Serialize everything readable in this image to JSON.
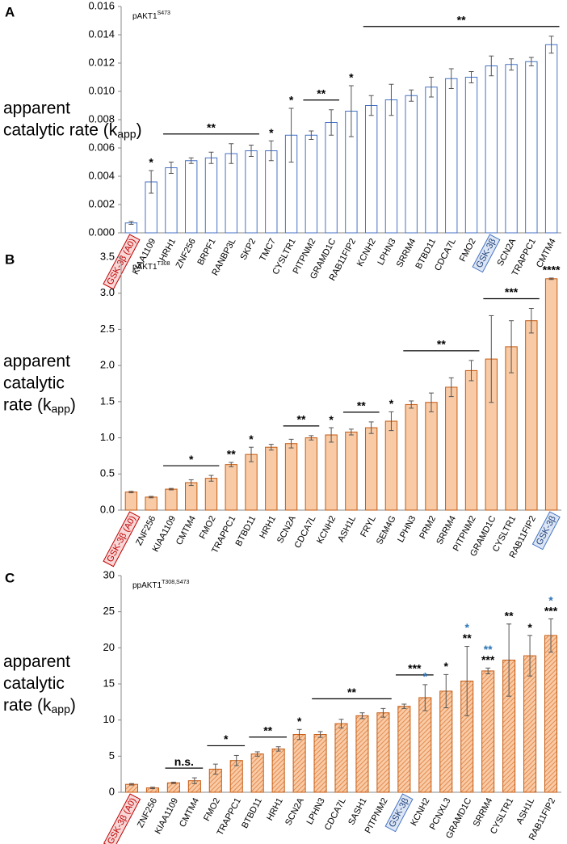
{
  "chart_data": [
    {
      "type": "bar",
      "panel": "A",
      "title": "pAKT1",
      "title_sup": "S473",
      "ylabel_lines": [
        "apparent",
        "catalytic rate (k"
      ],
      "ylabel_sub": "app",
      "ylabel_end": ")",
      "categories": [
        "GSK-3β (A0)",
        "KIAA1109",
        "HRH1",
        "ZNF256",
        "BRPF1",
        "RANBP3L",
        "SKP2",
        "TMC7",
        "CYSLTR1",
        "PITPNM2",
        "GRAMD1C",
        "RAB11FIP2",
        "KCNH2",
        "LPHN3",
        "SRRM4",
        "BTBD11",
        "CDCA7L",
        "FMO2",
        "GSK-3β",
        "SCN2A",
        "TRAPPC1",
        "CMTM4"
      ],
      "values": [
        0.0007,
        0.0036,
        0.0046,
        0.0051,
        0.0053,
        0.0056,
        0.0058,
        0.0058,
        0.0069,
        0.0069,
        0.0078,
        0.0086,
        0.009,
        0.0094,
        0.0097,
        0.0103,
        0.0109,
        0.011,
        0.0118,
        0.0119,
        0.0121,
        0.0133
      ],
      "errors": [
        0.0001,
        0.0008,
        0.0004,
        0.0002,
        0.0004,
        0.0007,
        0.0004,
        0.0007,
        0.0019,
        0.0003,
        0.0009,
        0.0018,
        0.0007,
        0.0011,
        0.0004,
        0.0007,
        0.0007,
        0.0004,
        0.0007,
        0.0004,
        0.0003,
        0.0006
      ],
      "color": "#4472c4",
      "fill": "#ffffff",
      "hatch": false,
      "ylim": [
        0,
        0.016
      ],
      "yticks": [
        {
          "value": 0,
          "label": "0.000"
        },
        {
          "value": 0.002,
          "label": "0.002"
        },
        {
          "value": 0.004,
          "label": "0.004"
        },
        {
          "value": 0.006,
          "label": "0.006"
        },
        {
          "value": 0.008,
          "label": "0.008"
        },
        {
          "value": 0.01,
          "label": "0.010"
        },
        {
          "value": 0.012,
          "label": "0.012"
        },
        {
          "value": 0.014,
          "label": "0.014"
        },
        {
          "value": 0.016,
          "label": "0.016"
        }
      ],
      "boxed_categories": [
        {
          "category": 0,
          "color": "#c00000",
          "fill": "#f8d7d7"
        },
        {
          "category": 18,
          "color": "#4472c4",
          "fill": "#dce6f4"
        }
      ],
      "annotations": [
        {
          "from": 1,
          "to": 1,
          "text": "*",
          "color": "#000000"
        },
        {
          "from": 2,
          "to": 6,
          "text": "**",
          "color": "#000000"
        },
        {
          "from": 7,
          "to": 7,
          "text": "*",
          "color": "#000000"
        },
        {
          "from": 8,
          "to": 8,
          "text": "*",
          "color": "#000000"
        },
        {
          "from": 9,
          "to": 10,
          "text": "**",
          "color": "#000000"
        },
        {
          "from": 11,
          "to": 11,
          "text": "*",
          "color": "#000000"
        },
        {
          "from": 12,
          "to": 21,
          "text": "**",
          "color": "#000000"
        }
      ]
    },
    {
      "type": "bar",
      "panel": "B",
      "title": "pAKT1",
      "title_sup": "T308",
      "ylabel_lines": [
        "apparent",
        "catalytic",
        "rate (k"
      ],
      "ylabel_sub": "app",
      "ylabel_end": ")",
      "categories": [
        "GSK-3β (A0)",
        "ZNF256",
        "KIAA1109",
        "CMTM4",
        "FMO2",
        "TRAPPC1",
        "BTBD11",
        "HRH1",
        "SCN2A",
        "CDCA7L",
        "KCNH2",
        "ASH1L",
        "FRYL",
        "SEM4G",
        "LPHN3",
        "PRM2",
        "SRRM4",
        "PITPNM2",
        "GRAMD1C",
        "CYSLTR1",
        "RAB11FIP2",
        "GSK-3β"
      ],
      "values": [
        0.25,
        0.18,
        0.29,
        0.38,
        0.44,
        0.63,
        0.77,
        0.87,
        0.92,
        1.0,
        1.04,
        1.08,
        1.14,
        1.23,
        1.46,
        1.49,
        1.7,
        1.93,
        2.09,
        2.26,
        2.62,
        3.2
      ],
      "errors": [
        0.01,
        0.01,
        0.01,
        0.04,
        0.04,
        0.03,
        0.1,
        0.04,
        0.06,
        0.03,
        0.1,
        0.04,
        0.08,
        0.13,
        0.05,
        0.13,
        0.13,
        0.14,
        0.6,
        0.36,
        0.17,
        0.01
      ],
      "color": "#c55a11",
      "fill": "#f8cba6",
      "hatch": false,
      "ylim": [
        0,
        3.5
      ],
      "yticks": [
        {
          "value": 0,
          "label": "0.0"
        },
        {
          "value": 0.5,
          "label": "0.5"
        },
        {
          "value": 1,
          "label": "1.0"
        },
        {
          "value": 1.5,
          "label": "1.5"
        },
        {
          "value": 2,
          "label": "2.0"
        },
        {
          "value": 2.5,
          "label": "2.5"
        },
        {
          "value": 3,
          "label": "3.0"
        },
        {
          "value": 3.5,
          "label": "3.5"
        }
      ],
      "boxed_categories": [
        {
          "category": 0,
          "color": "#c00000",
          "fill": "#f8d7d7"
        },
        {
          "category": 21,
          "color": "#4472c4",
          "fill": "#dce6f4"
        }
      ],
      "annotations": [
        {
          "from": 2,
          "to": 4,
          "text": "*",
          "color": "#000000"
        },
        {
          "from": 5,
          "to": 5,
          "text": "**",
          "color": "#000000"
        },
        {
          "from": 6,
          "to": 6,
          "text": "*",
          "color": "#000000"
        },
        {
          "from": 8,
          "to": 9,
          "text": "**",
          "color": "#000000"
        },
        {
          "from": 10,
          "to": 10,
          "text": "*",
          "color": "#000000"
        },
        {
          "from": 11,
          "to": 12,
          "text": "**",
          "color": "#000000"
        },
        {
          "from": 13,
          "to": 13,
          "text": "*",
          "color": "#000000"
        },
        {
          "from": 14,
          "to": 17,
          "text": "**",
          "color": "#000000"
        },
        {
          "from": 18,
          "to": 20,
          "text": "***",
          "color": "#000000"
        },
        {
          "from": 21,
          "to": 21,
          "text": "****",
          "color": "#000000"
        }
      ]
    },
    {
      "type": "bar",
      "panel": "C",
      "title": "ppAKT1",
      "title_sup": "T308,S473",
      "ylabel_lines": [
        "apparent",
        "catalytic",
        "rate (k"
      ],
      "ylabel_sub": "app",
      "ylabel_end": ")",
      "categories": [
        "GSK-3β (A0)",
        "ZNF256",
        "KIAA1109",
        "CMTM4",
        "FMO2",
        "TRAPPC1",
        "BTBD11",
        "HRH1",
        "SCN2A",
        "LPHN3",
        "CDCA7L",
        "SASH1",
        "PITPNM2",
        "GSK-3β",
        "KCNH2",
        "PCNXL3",
        "GRAMD1C",
        "SRRM4",
        "CYSLTR1",
        "ASH1L",
        "RAB11FIP2"
      ],
      "values": [
        1.1,
        0.6,
        1.3,
        1.6,
        3.2,
        4.4,
        5.3,
        6.0,
        8.0,
        8.0,
        9.5,
        10.6,
        11.0,
        11.9,
        13.1,
        14.0,
        15.4,
        16.8,
        18.3,
        18.9,
        21.7
      ],
      "errors": [
        0.1,
        0.1,
        0.1,
        0.4,
        0.7,
        0.7,
        0.3,
        0.3,
        0.7,
        0.4,
        0.6,
        0.4,
        0.6,
        0.3,
        1.8,
        2.3,
        4.8,
        0.4,
        5.0,
        2.8,
        2.3
      ],
      "color": "#c55a11",
      "fill": "#f8cba6",
      "hatch": true,
      "ylim": [
        0,
        30
      ],
      "yticks": [
        0,
        5,
        10,
        15,
        20,
        25,
        30
      ],
      "boxed_categories": [
        {
          "category": 0,
          "color": "#c00000",
          "fill": "#f8d7d7"
        },
        {
          "category": 13,
          "color": "#4472c4",
          "fill": "#dce6f4"
        }
      ],
      "annotations": [
        {
          "from": 2,
          "to": 3,
          "text": "n.s.",
          "color": "#000000"
        },
        {
          "from": 4,
          "to": 5,
          "text": "*",
          "color": "#000000"
        },
        {
          "from": 6,
          "to": 7,
          "text": "**",
          "color": "#000000"
        },
        {
          "from": 8,
          "to": 8,
          "text": "*",
          "color": "#000000"
        },
        {
          "from": 9,
          "to": 12,
          "text": "**",
          "color": "#000000"
        },
        {
          "from": 13,
          "to": 14,
          "text": "***",
          "color": "#000000"
        },
        {
          "from": 14,
          "to": 14,
          "text": "*",
          "color": "#2e75b6"
        },
        {
          "from": 15,
          "to": 15,
          "text": "*",
          "color": "#000000"
        },
        {
          "from": 16,
          "to": 16,
          "text": "**",
          "color": "#000000"
        },
        {
          "from": 16,
          "to": 16,
          "text": "*",
          "color": "#2e75b6"
        },
        {
          "from": 17,
          "to": 17,
          "text": "***",
          "color": "#000000"
        },
        {
          "from": 17,
          "to": 17,
          "text": "**",
          "color": "#2e75b6"
        },
        {
          "from": 18,
          "to": 18,
          "text": "**",
          "color": "#000000"
        },
        {
          "from": 19,
          "to": 19,
          "text": "*",
          "color": "#000000"
        },
        {
          "from": 20,
          "to": 20,
          "text": "***",
          "color": "#000000"
        },
        {
          "from": 20,
          "to": 20,
          "text": "*",
          "color": "#2e75b6"
        }
      ]
    }
  ]
}
